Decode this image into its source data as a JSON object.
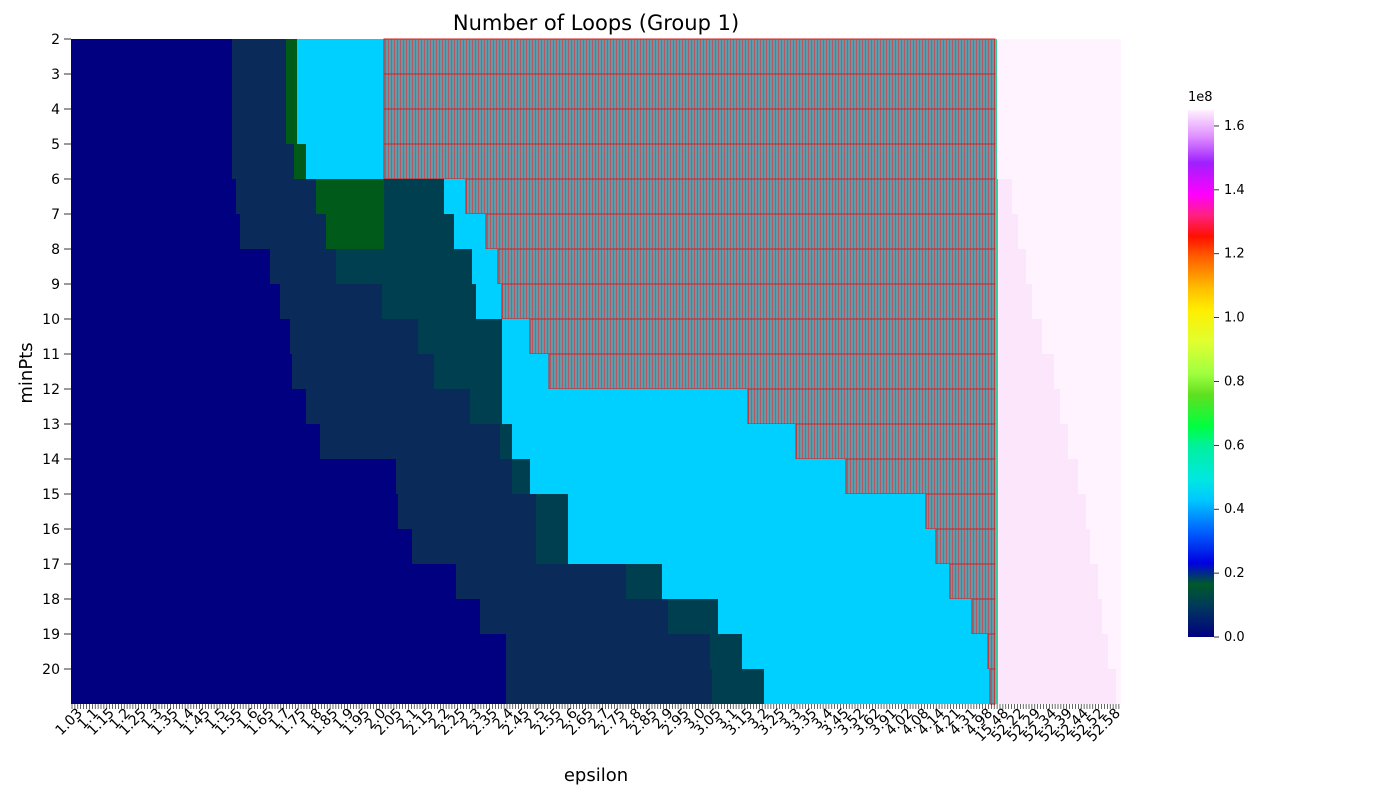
{
  "chart_data": {
    "type": "heatmap",
    "title": "Number of Loops (Group 1)",
    "xlabel": "epsilon",
    "ylabel": "minPts",
    "y_ticks": [
      "2",
      "3",
      "4",
      "5",
      "6",
      "7",
      "8",
      "9",
      "10",
      "11",
      "12",
      "13",
      "14",
      "15",
      "16",
      "17",
      "18",
      "19",
      "20"
    ],
    "x_tick_labels_visible": [
      "1.03",
      "1.1",
      "1.15",
      "1.2",
      "1.25",
      "1.3",
      "1.35",
      "1.4",
      "1.45",
      "1.5",
      "1.55",
      "1.6",
      "1.65",
      "1.7",
      "1.75",
      "1.8",
      "1.85",
      "1.9",
      "1.95",
      "2.0",
      "2.05",
      "2.1",
      "2.15",
      "2.2",
      "2.25",
      "2.3",
      "2.35",
      "2.4",
      "2.45",
      "2.5",
      "2.55",
      "2.6",
      "2.65",
      "2.7",
      "2.75",
      "2.8",
      "2.85",
      "2.9",
      "2.95",
      "3.0",
      "3.05",
      "3.1",
      "3.15",
      "3.2",
      "3.25",
      "3.3",
      "3.35",
      "3.4",
      "3.45",
      "3.52",
      "3.62",
      "3.91",
      "4.02",
      "4.08",
      "4.14",
      "4.21",
      "4.31",
      "4.98",
      "15.48",
      "52.22",
      "52.29",
      "52.34",
      "52.39",
      "52.44",
      "52.52",
      "52.58"
    ],
    "colorbar": {
      "colormap": "gist_ncar",
      "range": [
        0,
        1.65
      ],
      "multiplier": "1e8",
      "ticks": [
        "0.0",
        "0.2",
        "0.4",
        "0.6",
        "0.8",
        "1.0",
        "1.2",
        "1.4",
        "1.6"
      ]
    },
    "regions": {
      "low_near_zero": "dark navy",
      "mid_teal_green": "0.05-0.1 (1e8)",
      "cyan_band": "~0.3-0.35 (1e8)",
      "hatched_gray": "masked / not computed (hatched with red outline)",
      "pink_high": "~1.65 (1e8) for largest epsilon"
    }
  }
}
